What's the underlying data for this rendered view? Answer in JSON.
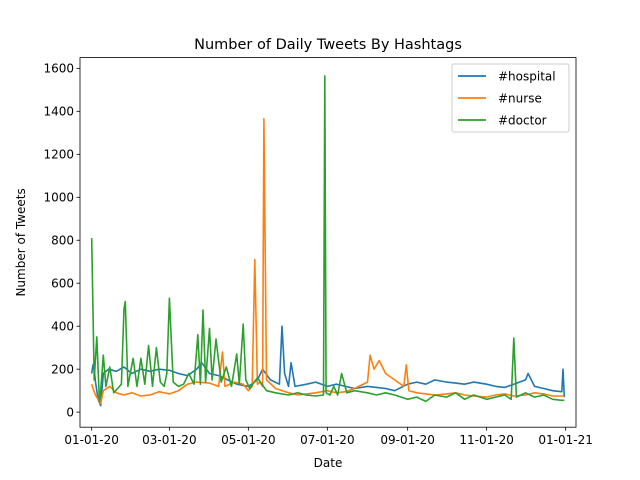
{
  "chart_data": {
    "type": "line",
    "title": "Number of Daily Tweets By Hashtags",
    "xlabel": "Date",
    "ylabel": "Number of Tweets",
    "xlim": [
      "2019-12-23",
      "2021-01-09"
    ],
    "ylim": [
      -70,
      1650
    ],
    "x_ticks": [
      {
        "date": "2020-01-01",
        "label": "01-01-20"
      },
      {
        "date": "2020-03-01",
        "label": "03-01-20"
      },
      {
        "date": "2020-05-01",
        "label": "05-01-20"
      },
      {
        "date": "2020-07-01",
        "label": "07-01-20"
      },
      {
        "date": "2020-09-01",
        "label": "09-01-20"
      },
      {
        "date": "2020-11-01",
        "label": "11-01-20"
      },
      {
        "date": "2021-01-01",
        "label": "01-01-21"
      }
    ],
    "y_ticks": [
      0,
      200,
      400,
      600,
      800,
      1000,
      1200,
      1400,
      1600
    ],
    "grid": false,
    "legend_position": "top-right",
    "series": [
      {
        "name": "#hospital",
        "color": "#1f77b4",
        "points": [
          [
            "2020-01-01",
            180
          ],
          [
            "2020-01-02",
            220
          ],
          [
            "2020-01-03",
            200
          ],
          [
            "2020-01-04",
            140
          ],
          [
            "2020-01-06",
            60
          ],
          [
            "2020-01-08",
            30
          ],
          [
            "2020-01-10",
            180
          ],
          [
            "2020-01-14",
            200
          ],
          [
            "2020-01-20",
            190
          ],
          [
            "2020-01-26",
            210
          ],
          [
            "2020-02-01",
            180
          ],
          [
            "2020-02-08",
            200
          ],
          [
            "2020-02-15",
            190
          ],
          [
            "2020-02-22",
            200
          ],
          [
            "2020-03-01",
            195
          ],
          [
            "2020-03-08",
            180
          ],
          [
            "2020-03-15",
            170
          ],
          [
            "2020-03-22",
            200
          ],
          [
            "2020-03-26",
            230
          ],
          [
            "2020-04-01",
            180
          ],
          [
            "2020-04-08",
            170
          ],
          [
            "2020-04-15",
            150
          ],
          [
            "2020-04-22",
            130
          ],
          [
            "2020-05-01",
            120
          ],
          [
            "2020-05-08",
            150
          ],
          [
            "2020-05-12",
            200
          ],
          [
            "2020-05-18",
            150
          ],
          [
            "2020-05-25",
            130
          ],
          [
            "2020-05-27",
            400
          ],
          [
            "2020-05-29",
            180
          ],
          [
            "2020-06-01",
            120
          ],
          [
            "2020-06-03",
            230
          ],
          [
            "2020-06-06",
            120
          ],
          [
            "2020-06-15",
            130
          ],
          [
            "2020-06-22",
            140
          ],
          [
            "2020-07-01",
            120
          ],
          [
            "2020-07-08",
            130
          ],
          [
            "2020-07-15",
            120
          ],
          [
            "2020-07-22",
            110
          ],
          [
            "2020-08-01",
            120
          ],
          [
            "2020-08-08",
            115
          ],
          [
            "2020-08-15",
            110
          ],
          [
            "2020-08-22",
            100
          ],
          [
            "2020-09-01",
            130
          ],
          [
            "2020-09-08",
            140
          ],
          [
            "2020-09-15",
            130
          ],
          [
            "2020-09-22",
            150
          ],
          [
            "2020-10-01",
            140
          ],
          [
            "2020-10-08",
            135
          ],
          [
            "2020-10-15",
            130
          ],
          [
            "2020-10-22",
            140
          ],
          [
            "2020-11-01",
            130
          ],
          [
            "2020-11-08",
            120
          ],
          [
            "2020-11-15",
            115
          ],
          [
            "2020-11-22",
            130
          ],
          [
            "2020-12-01",
            150
          ],
          [
            "2020-12-03",
            180
          ],
          [
            "2020-12-08",
            120
          ],
          [
            "2020-12-15",
            110
          ],
          [
            "2020-12-22",
            100
          ],
          [
            "2020-12-29",
            95
          ],
          [
            "2020-12-30",
            200
          ],
          [
            "2020-12-31",
            70
          ]
        ]
      },
      {
        "name": "#nurse",
        "color": "#ff7f0e",
        "points": [
          [
            "2020-01-01",
            130
          ],
          [
            "2020-01-02",
            110
          ],
          [
            "2020-01-04",
            80
          ],
          [
            "2020-01-06",
            60
          ],
          [
            "2020-01-08",
            40
          ],
          [
            "2020-01-10",
            100
          ],
          [
            "2020-01-15",
            120
          ],
          [
            "2020-01-20",
            90
          ],
          [
            "2020-01-26",
            80
          ],
          [
            "2020-02-01",
            90
          ],
          [
            "2020-02-08",
            75
          ],
          [
            "2020-02-15",
            80
          ],
          [
            "2020-02-22",
            95
          ],
          [
            "2020-03-01",
            85
          ],
          [
            "2020-03-08",
            100
          ],
          [
            "2020-03-15",
            130
          ],
          [
            "2020-03-22",
            140
          ],
          [
            "2020-04-01",
            135
          ],
          [
            "2020-04-08",
            120
          ],
          [
            "2020-04-11",
            280
          ],
          [
            "2020-04-13",
            120
          ],
          [
            "2020-04-20",
            140
          ],
          [
            "2020-04-27",
            130
          ],
          [
            "2020-05-01",
            100
          ],
          [
            "2020-05-04",
            120
          ],
          [
            "2020-05-06",
            710
          ],
          [
            "2020-05-08",
            130
          ],
          [
            "2020-05-10",
            140
          ],
          [
            "2020-05-12",
            120
          ],
          [
            "2020-05-13",
            1365
          ],
          [
            "2020-05-15",
            150
          ],
          [
            "2020-05-22",
            110
          ],
          [
            "2020-06-01",
            90
          ],
          [
            "2020-06-08",
            80
          ],
          [
            "2020-06-15",
            85
          ],
          [
            "2020-06-22",
            90
          ],
          [
            "2020-07-01",
            100
          ],
          [
            "2020-07-08",
            90
          ],
          [
            "2020-07-15",
            95
          ],
          [
            "2020-07-22",
            110
          ],
          [
            "2020-08-01",
            140
          ],
          [
            "2020-08-03",
            265
          ],
          [
            "2020-08-06",
            200
          ],
          [
            "2020-08-10",
            240
          ],
          [
            "2020-08-15",
            180
          ],
          [
            "2020-08-22",
            150
          ],
          [
            "2020-08-29",
            120
          ],
          [
            "2020-08-31",
            220
          ],
          [
            "2020-09-02",
            100
          ],
          [
            "2020-09-08",
            90
          ],
          [
            "2020-09-15",
            85
          ],
          [
            "2020-09-22",
            80
          ],
          [
            "2020-10-01",
            85
          ],
          [
            "2020-10-08",
            90
          ],
          [
            "2020-10-15",
            80
          ],
          [
            "2020-10-22",
            75
          ],
          [
            "2020-11-01",
            70
          ],
          [
            "2020-11-08",
            80
          ],
          [
            "2020-11-15",
            85
          ],
          [
            "2020-11-22",
            75
          ],
          [
            "2020-12-01",
            80
          ],
          [
            "2020-12-08",
            90
          ],
          [
            "2020-12-15",
            85
          ],
          [
            "2020-12-22",
            75
          ],
          [
            "2020-12-31",
            75
          ]
        ]
      },
      {
        "name": "#doctor",
        "color": "#2ca02c",
        "points": [
          [
            "2020-01-01",
            810
          ],
          [
            "2020-01-03",
            150
          ],
          [
            "2020-01-05",
            350
          ],
          [
            "2020-01-07",
            50
          ],
          [
            "2020-01-08",
            100
          ],
          [
            "2020-01-10",
            265
          ],
          [
            "2020-01-12",
            120
          ],
          [
            "2020-01-15",
            210
          ],
          [
            "2020-01-18",
            90
          ],
          [
            "2020-01-21",
            110
          ],
          [
            "2020-01-24",
            130
          ],
          [
            "2020-01-26",
            480
          ],
          [
            "2020-01-27",
            515
          ],
          [
            "2020-01-29",
            120
          ],
          [
            "2020-02-02",
            250
          ],
          [
            "2020-02-05",
            120
          ],
          [
            "2020-02-08",
            250
          ],
          [
            "2020-02-11",
            130
          ],
          [
            "2020-02-14",
            310
          ],
          [
            "2020-02-17",
            120
          ],
          [
            "2020-02-20",
            300
          ],
          [
            "2020-02-23",
            140
          ],
          [
            "2020-02-26",
            120
          ],
          [
            "2020-02-28",
            180
          ],
          [
            "2020-03-01",
            530
          ],
          [
            "2020-03-04",
            140
          ],
          [
            "2020-03-08",
            120
          ],
          [
            "2020-03-12",
            130
          ],
          [
            "2020-03-16",
            180
          ],
          [
            "2020-03-20",
            130
          ],
          [
            "2020-03-23",
            360
          ],
          [
            "2020-03-25",
            130
          ],
          [
            "2020-03-27",
            475
          ],
          [
            "2020-03-29",
            140
          ],
          [
            "2020-04-01",
            390
          ],
          [
            "2020-04-03",
            150
          ],
          [
            "2020-04-06",
            340
          ],
          [
            "2020-04-10",
            140
          ],
          [
            "2020-04-14",
            210
          ],
          [
            "2020-04-18",
            120
          ],
          [
            "2020-04-22",
            270
          ],
          [
            "2020-04-24",
            130
          ],
          [
            "2020-04-27",
            410
          ],
          [
            "2020-04-29",
            150
          ],
          [
            "2020-05-02",
            110
          ],
          [
            "2020-05-08",
            160
          ],
          [
            "2020-05-15",
            100
          ],
          [
            "2020-05-22",
            90
          ],
          [
            "2020-06-01",
            80
          ],
          [
            "2020-06-08",
            90
          ],
          [
            "2020-06-15",
            80
          ],
          [
            "2020-06-22",
            75
          ],
          [
            "2020-06-28",
            80
          ],
          [
            "2020-06-29",
            1565
          ],
          [
            "2020-06-30",
            90
          ],
          [
            "2020-07-03",
            80
          ],
          [
            "2020-07-06",
            120
          ],
          [
            "2020-07-09",
            80
          ],
          [
            "2020-07-12",
            180
          ],
          [
            "2020-07-16",
            90
          ],
          [
            "2020-07-22",
            100
          ],
          [
            "2020-08-01",
            90
          ],
          [
            "2020-08-08",
            80
          ],
          [
            "2020-08-15",
            90
          ],
          [
            "2020-08-22",
            80
          ],
          [
            "2020-09-01",
            60
          ],
          [
            "2020-09-08",
            70
          ],
          [
            "2020-09-15",
            50
          ],
          [
            "2020-09-22",
            80
          ],
          [
            "2020-10-01",
            70
          ],
          [
            "2020-10-08",
            90
          ],
          [
            "2020-10-15",
            60
          ],
          [
            "2020-10-22",
            80
          ],
          [
            "2020-11-01",
            60
          ],
          [
            "2020-11-08",
            70
          ],
          [
            "2020-11-15",
            80
          ],
          [
            "2020-11-20",
            60
          ],
          [
            "2020-11-22",
            345
          ],
          [
            "2020-11-24",
            70
          ],
          [
            "2020-12-01",
            90
          ],
          [
            "2020-12-08",
            70
          ],
          [
            "2020-12-15",
            80
          ],
          [
            "2020-12-22",
            60
          ],
          [
            "2020-12-29",
            55
          ],
          [
            "2020-12-31",
            55
          ]
        ]
      }
    ]
  }
}
